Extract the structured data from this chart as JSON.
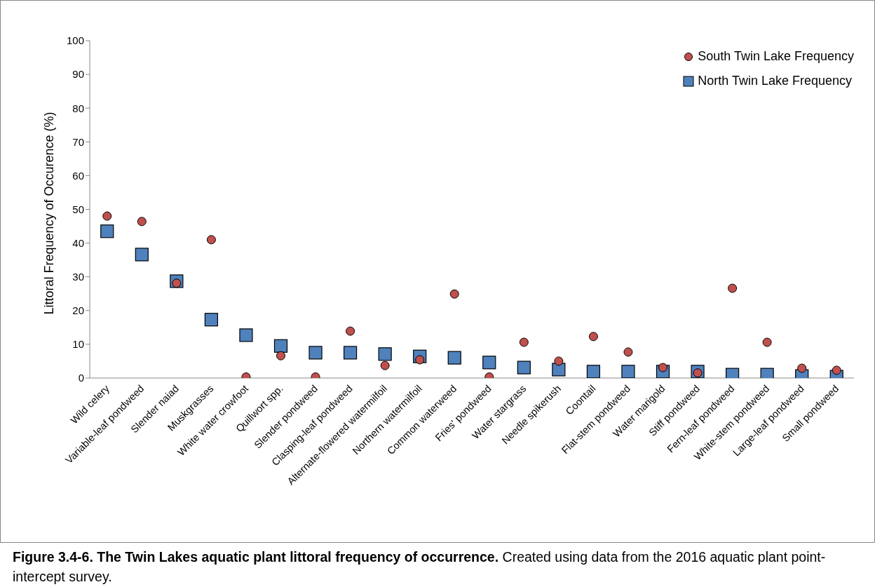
{
  "chart_data": {
    "type": "scatter",
    "ylabel": "Littoral Frequency  of Occurence (%)",
    "categories": [
      "Wild celery",
      "Variable-leaf pondweed",
      "Slender naiad",
      "Muskgrasses",
      "White water crowfoot",
      "Quillwort spp.",
      "Slender pondweed",
      "Clasping-leaf pondweed",
      "Alternate-flowered watermilfoil",
      "Northern watermilfoil",
      "Common waterweed",
      "Fries' pondweed",
      "Water stargrass",
      "Needle spikerush",
      "Coontail",
      "Flat-stem pondweed",
      "Water marigold",
      "Stiff pondweed",
      "Fern-leaf pondweed",
      "White-stem pondweed",
      "Large-leaf pondweed",
      "Small pondweed"
    ],
    "series": [
      {
        "name": "South Twin Lake Frequency",
        "color": "#c0504d",
        "marker": "circle",
        "values": [
          48.0,
          46.4,
          28.1,
          41.0,
          0.3,
          6.6,
          0.3,
          13.9,
          3.7,
          5.4,
          24.9,
          0.3,
          10.6,
          5.0,
          12.3,
          7.7,
          3.1,
          1.5,
          26.6,
          10.6,
          2.9,
          2.3
        ]
      },
      {
        "name": "North Twin Lake Frequency",
        "color": "#4f81bd",
        "marker": "square",
        "values": [
          43.5,
          36.6,
          28.7,
          17.3,
          12.7,
          9.5,
          7.5,
          7.5,
          7.1,
          6.4,
          6.0,
          4.6,
          3.1,
          2.5,
          1.9,
          1.9,
          1.9,
          1.9,
          1.0,
          1.0,
          0.6,
          0.4
        ]
      }
    ],
    "ylim": [
      0,
      100
    ],
    "yticks": [
      0,
      10,
      20,
      30,
      40,
      50,
      60,
      70,
      80,
      90,
      100
    ],
    "grid": false,
    "legend": "top right",
    "annotations": [
      "Figure 3.4-6.  The Twin Lakes aquatic plant littoral frequency of occurrence.",
      "Created using data from the 2016 aquatic plant point-intercept survey."
    ]
  }
}
